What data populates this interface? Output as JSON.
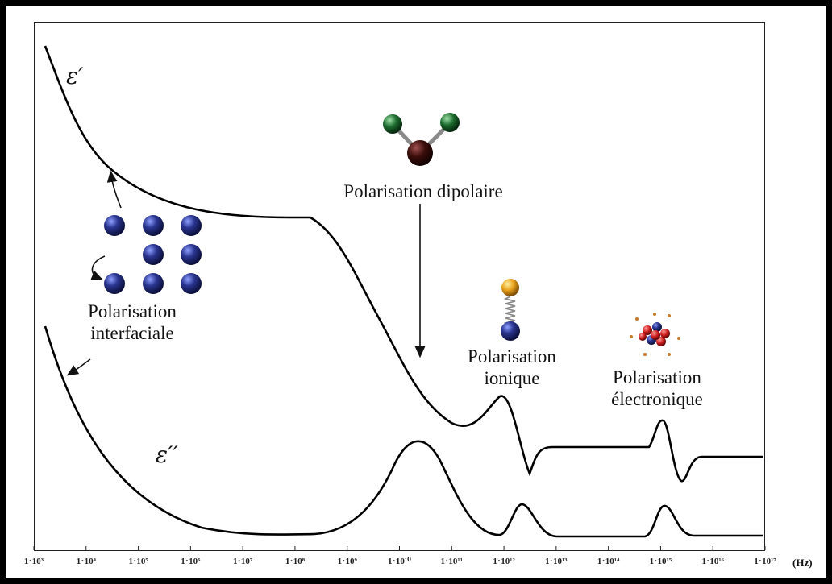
{
  "labels": {
    "eps_prime": "ε′",
    "eps_second": "ε′′",
    "interfaciale": [
      "Polarisation",
      "interfaciale"
    ],
    "dipolaire": "Polarisation dipolaire",
    "ionique": [
      "Polarisation",
      "ionique"
    ],
    "electronique": [
      "Polarisation",
      "électronique"
    ],
    "unit": "(Hz)"
  },
  "axis": {
    "ticks": [
      "1⋅10³",
      "1⋅10⁴",
      "1⋅10⁵",
      "1⋅10⁶",
      "1⋅10⁷",
      "1⋅10⁸",
      "1⋅10⁹",
      "1⋅10¹⁰",
      "1⋅10¹¹",
      "1⋅10¹²",
      "1⋅10¹³",
      "1⋅10¹⁴",
      "1⋅10¹⁵",
      "1⋅10¹⁶",
      "1⋅10¹⁷"
    ]
  },
  "colors": {
    "curve": "#000000",
    "atom_blue": "#1f2a7a",
    "atom_green": "#1c6b2e",
    "atom_brown": "#3a0d0a",
    "atom_orange": "#e8a21c",
    "atom_red": "#cc1d1d"
  },
  "icons": [
    "lattice-atoms-icon",
    "water-dipole-molecule-icon",
    "ion-pair-spring-icon",
    "electron-cloud-atom-icon"
  ]
}
